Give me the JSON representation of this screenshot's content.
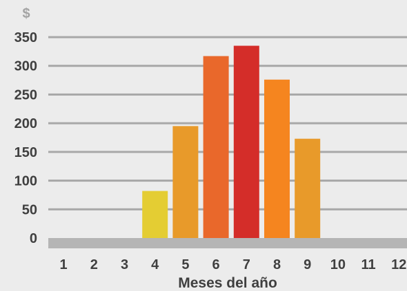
{
  "chart_data": {
    "type": "bar",
    "y_unit": "$",
    "xlabel": "Meses del año",
    "categories": [
      "1",
      "2",
      "3",
      "4",
      "5",
      "6",
      "7",
      "8",
      "9",
      "10",
      "11",
      "12"
    ],
    "values": [
      0,
      0,
      0,
      82,
      195,
      317,
      335,
      276,
      173,
      0,
      0,
      0
    ],
    "bar_colors": [
      "#e4cd33",
      "#e4cd33",
      "#e4cd33",
      "#e4cd33",
      "#e89a2a",
      "#e9682b",
      "#d42d29",
      "#f5851f",
      "#e89a2a",
      "#e89a2a",
      "#e89a2a",
      "#e89a2a"
    ],
    "ylim": [
      0,
      350
    ],
    "yticks": [
      0,
      50,
      100,
      150,
      200,
      250,
      300,
      350
    ],
    "grid": true,
    "colors": {
      "background": "#ececec",
      "gridline": "#a8a8a8",
      "baseline": "#b5b5b5",
      "text": "#3f3f3f",
      "unit": "#a3a3a3"
    }
  }
}
